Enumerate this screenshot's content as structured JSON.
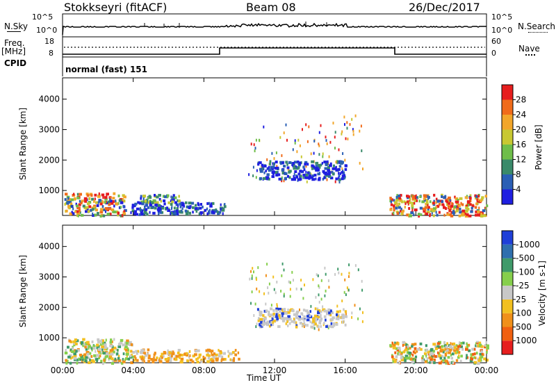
{
  "header": {
    "station": "Stokkseyri (fitACF)",
    "beam": "Beam 08",
    "date": "26/Dec/2017"
  },
  "strips": {
    "nsky_label": "N.Sky",
    "nsky_ticks": [
      "10^5",
      "10^0"
    ],
    "nsearch_label": "N.Search",
    "nsearch_ticks": [
      "10^5",
      "10^0"
    ],
    "freq_label_1": "Freq.",
    "freq_label_2": "[MHz]",
    "freq_ticks": [
      "18",
      "8"
    ],
    "nave_label": "Nave",
    "nave_ticks": [
      "60",
      "0"
    ],
    "cpid_label": "CPID",
    "cpid_value": "normal (fast) 151"
  },
  "xaxis": {
    "ticks": [
      "00:00",
      "04:00",
      "08:00",
      "12:00",
      "16:00",
      "20:00",
      "00:00"
    ],
    "label": "Time UT"
  },
  "chart_data": [
    {
      "type": "heatmap",
      "panel": "power",
      "ylabel": "Slant Range [km]",
      "yticks": [
        "1000",
        "2000",
        "3000",
        "4000"
      ],
      "ylim": [
        180,
        4700
      ],
      "xlim_hours": [
        0,
        24
      ],
      "colorbar_label": "Power [dB]",
      "colorbar_ticks": [
        "4",
        "8",
        "12",
        "16",
        "20",
        "24",
        "28"
      ],
      "colorbar_colors": [
        "#1f1fe0",
        "#2a5fb5",
        "#3a8a6a",
        "#6fbe4a",
        "#c8c832",
        "#f2a62a",
        "#f06b1a",
        "#e61e1e"
      ],
      "regions": [
        {
          "t0": 0.1,
          "t1": 3.5,
          "r0": 200,
          "r1": 950,
          "level": "mixed-high"
        },
        {
          "t0": 4.2,
          "t1": 6.6,
          "r0": 600,
          "r1": 900,
          "level": "mixed"
        },
        {
          "t0": 3.8,
          "t1": 9.2,
          "r0": 250,
          "r1": 650,
          "level": "low"
        },
        {
          "t0": 11.0,
          "t1": 16.0,
          "r0": 1400,
          "r1": 2000,
          "level": "low"
        },
        {
          "t0": 18.5,
          "t1": 24.0,
          "r0": 200,
          "r1": 900,
          "level": "high"
        }
      ]
    },
    {
      "type": "heatmap",
      "panel": "velocity",
      "ylabel": "Slant Range [km]",
      "yticks": [
        "1000",
        "2000",
        "3000",
        "4000"
      ],
      "ylim": [
        180,
        4700
      ],
      "xlim_hours": [
        0,
        24
      ],
      "colorbar_label": "Velocity [m s-1]",
      "colorbar_ticks": [
        "1000",
        "500",
        "100",
        "25",
        "-25",
        "-100",
        "-500",
        "-1000"
      ],
      "colorbar_colors": [
        "#1f3fd8",
        "#2f6fae",
        "#3f9a6a",
        "#86cf4c",
        "#c8c8c8",
        "#f2c020",
        "#f0901a",
        "#f06010",
        "#e61e1e"
      ],
      "regions": [
        {
          "t0": 0.1,
          "t1": 4.0,
          "r0": 200,
          "r1": 1000,
          "level": "mixed-negative"
        },
        {
          "t0": 4.0,
          "t1": 10.0,
          "r0": 250,
          "r1": 650,
          "level": "negative"
        },
        {
          "t0": 11.0,
          "t1": 16.0,
          "r0": 1400,
          "r1": 2000,
          "level": "near-zero"
        },
        {
          "t0": 18.5,
          "t1": 24.0,
          "r0": 200,
          "r1": 900,
          "level": "mixed"
        }
      ]
    }
  ]
}
